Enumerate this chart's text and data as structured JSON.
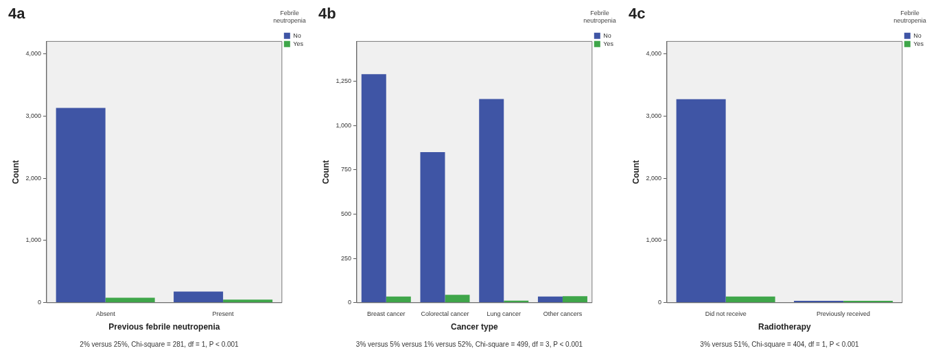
{
  "chart_data": [
    {
      "type": "bar",
      "title": "4a",
      "xlabel": "Previous febrile neutropenia",
      "ylabel": "Count",
      "categories": [
        "Absent",
        "Present"
      ],
      "series": [
        {
          "name": "No",
          "color": "#3f55a5",
          "values": [
            3130,
            180
          ]
        },
        {
          "name": "Yes",
          "color": "#3fa64a",
          "values": [
            80,
            50
          ]
        }
      ],
      "ylim": [
        0,
        4200
      ],
      "yticks": [
        0,
        {
          "value": 1000,
          "label": "1,000"
        },
        {
          "value": 2000,
          "label": "2,000"
        },
        {
          "value": 3000,
          "label": "3,000"
        },
        {
          "value": 4000,
          "label": "4,000"
        }
      ],
      "grid": false,
      "legend": "top right",
      "legend_title": "Febrile neutropenia",
      "annotations": [
        "2% versus 25%, Chi-square = 281, df = 1, P < 0.001"
      ]
    },
    {
      "type": "bar",
      "title": "4b",
      "xlabel": "Cancer type",
      "ylabel": "Count",
      "categories": [
        "Breast cancer",
        "Colorectal cancer",
        "Lung cancer",
        "Other cancers"
      ],
      "series": [
        {
          "name": "No",
          "color": "#3f55a5",
          "values": [
            1290,
            850,
            1150,
            35
          ]
        },
        {
          "name": "Yes",
          "color": "#3fa64a",
          "values": [
            35,
            45,
            12,
            37
          ]
        }
      ],
      "ylim": [
        0,
        1475
      ],
      "yticks": [
        0,
        250,
        500,
        750,
        {
          "value": 1000,
          "label": "1,000"
        },
        {
          "value": 1250,
          "label": "1,250"
        }
      ],
      "grid": false,
      "legend": "top right",
      "legend_title": "Febrile neutropenia",
      "annotations": [
        "3% versus 5% versus 1% versus 52%, Chi-square = 499, df = 3, P < 0.001"
      ]
    },
    {
      "type": "bar",
      "title": "4c",
      "xlabel": "Radiotherapy",
      "ylabel": "Count",
      "categories": [
        "Did not receive",
        "Previously received"
      ],
      "series": [
        {
          "name": "No",
          "color": "#3f55a5",
          "values": [
            3270,
            30
          ]
        },
        {
          "name": "Yes",
          "color": "#3fa64a",
          "values": [
            100,
            30
          ]
        }
      ],
      "ylim": [
        0,
        4200
      ],
      "yticks": [
        0,
        {
          "value": 1000,
          "label": "1,000"
        },
        {
          "value": 2000,
          "label": "2,000"
        },
        {
          "value": 3000,
          "label": "3,000"
        },
        {
          "value": 4000,
          "label": "4,000"
        }
      ],
      "grid": false,
      "legend": "top right",
      "legend_title": "Febrile neutropenia",
      "annotations": [
        "3% versus 51%, Chi-square = 404, df = 1, P < 0.001"
      ]
    }
  ]
}
